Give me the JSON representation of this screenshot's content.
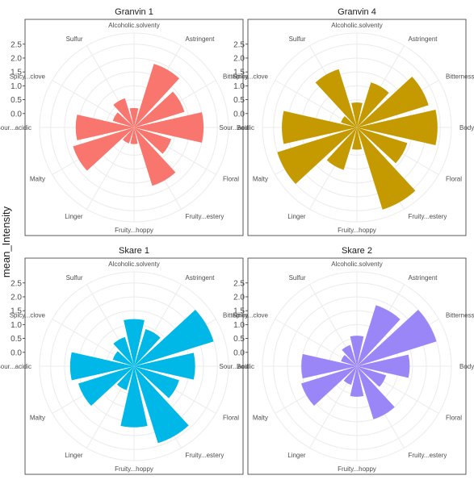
{
  "chart_data": {
    "type": "bar",
    "coord": "polar",
    "ylabel": "mean_Intensity",
    "yticks": [
      "0.0",
      "0.5",
      "1.0",
      "1.5",
      "2.0",
      "2.5"
    ],
    "ylim": [
      -0.5,
      2.9
    ],
    "grid": true,
    "categories": [
      "Alcoholic.solventy",
      "Astringent",
      "Bitterness",
      "Body",
      "Floral",
      "Fruity...estery",
      "Fruity...hoppy",
      "Linger",
      "Malty",
      "Sour...acidic",
      "Spicy...clove",
      "Sulfur"
    ],
    "panels": [
      {
        "title": "Granvin 1",
        "color": "#F8766D",
        "values": [
          0.2,
          1.9,
          1.4,
          2.0,
          0.9,
          1.7,
          0.1,
          0.1,
          1.8,
          1.6,
          0.3,
          0.6
        ]
      },
      {
        "title": "Granvin 4",
        "color": "#C49A00",
        "values": [
          0.4,
          1.2,
          2.2,
          2.4,
          1.4,
          2.6,
          0.3,
          1.1,
          2.5,
          2.2,
          0.1,
          1.7
        ]
      },
      {
        "title": "Skare 1",
        "color": "#00B8E7",
        "values": [
          1.2,
          0.9,
          2.5,
          1.7,
          1.2,
          2.4,
          1.7,
          0.4,
          1.6,
          1.8,
          0.3,
          0.6
        ]
      },
      {
        "title": "Skare 2",
        "color": "#9B86F7",
        "values": [
          0.6,
          1.8,
          2.5,
          1.4,
          0.6,
          1.5,
          0.6,
          0.2,
          1.6,
          1.5,
          0.1,
          0.3
        ]
      }
    ]
  }
}
